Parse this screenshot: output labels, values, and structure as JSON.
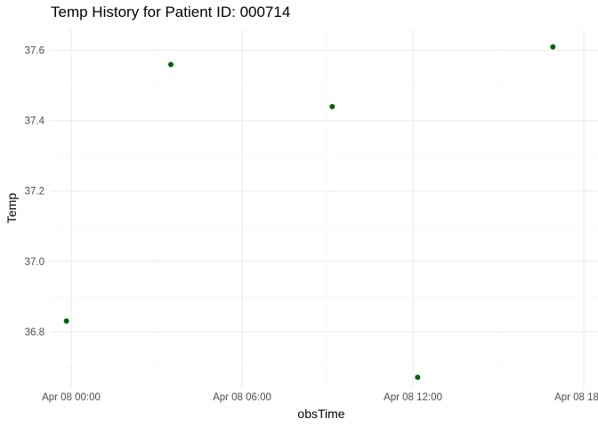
{
  "chart_data": {
    "type": "scatter",
    "title": "Temp History for Patient ID: 000714",
    "xlabel": "obsTime",
    "ylabel": "Temp",
    "x_ticks": [
      "Apr 08 00:00",
      "Apr 08 06:00",
      "Apr 08 12:00",
      "Apr 08 18:00"
    ],
    "y_ticks": [
      "36.8",
      "37.0",
      "37.2",
      "37.4",
      "37.6"
    ],
    "points": [
      {
        "x": "2024-04-07T23:50",
        "y": 36.83
      },
      {
        "x": "2024-04-08T03:30",
        "y": 37.56
      },
      {
        "x": "2024-04-08T09:10",
        "y": 37.44
      },
      {
        "x": "2024-04-08T12:10",
        "y": 36.67
      },
      {
        "x": "2024-04-08T16:55",
        "y": 37.61
      }
    ],
    "xlim": [
      "2024-04-07T23:15",
      "2024-04-08T18:30"
    ],
    "ylim": [
      36.64,
      37.66
    ],
    "grid": true,
    "legend": "none",
    "point_color": "#006400"
  }
}
